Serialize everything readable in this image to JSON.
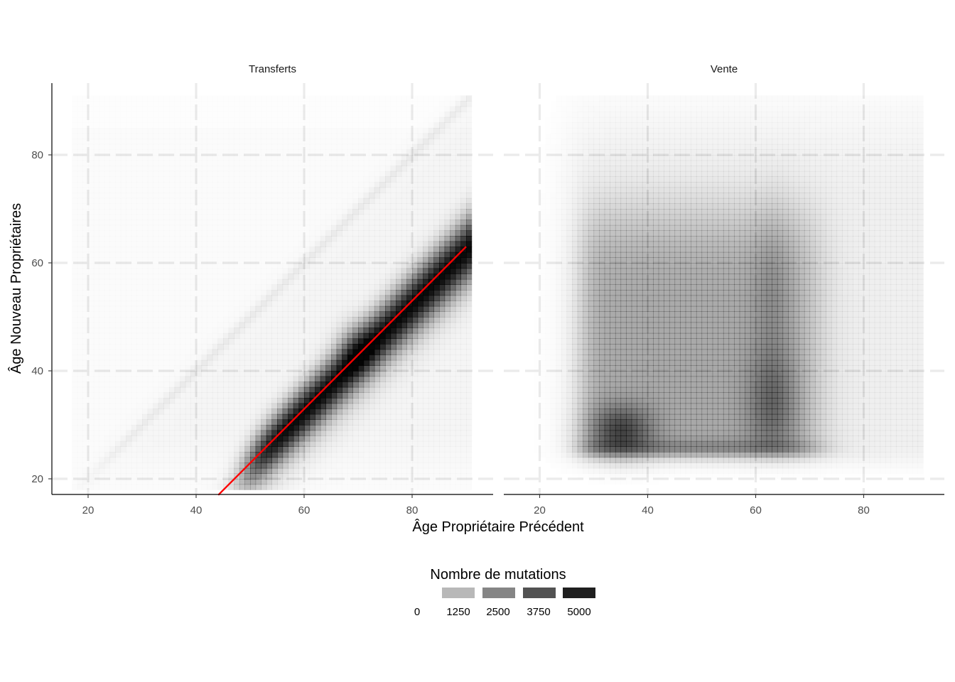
{
  "chart_data": {
    "type": "heatmap",
    "xlabel": "Âge Propriétaire Précédent",
    "ylabel": "Âge Nouveau Propriétaires",
    "x_ticks": [
      20,
      40,
      60,
      80
    ],
    "y_ticks": [
      20,
      40,
      60,
      80
    ],
    "xlim": [
      13.5,
      95
    ],
    "ylim": [
      17,
      93
    ],
    "grid": true,
    "colors": {
      "heat": "#000000",
      "reference_line": "#ff0000",
      "grid": "#ebebeb",
      "axis": "#000000"
    },
    "legend": {
      "title": "Nombre de mutations",
      "position": "bottom",
      "labels": [
        "0",
        "1250",
        "2500",
        "3750",
        "5000"
      ],
      "breaks": [
        0,
        1250,
        2500,
        3750,
        5000
      ],
      "max": 5000
    },
    "panels": [
      {
        "title": "Transferts",
        "reference_line": {
          "from": [
            44.1,
            17
          ],
          "to": [
            90,
            63
          ]
        }
      },
      {
        "title": "Vente"
      }
    ]
  }
}
